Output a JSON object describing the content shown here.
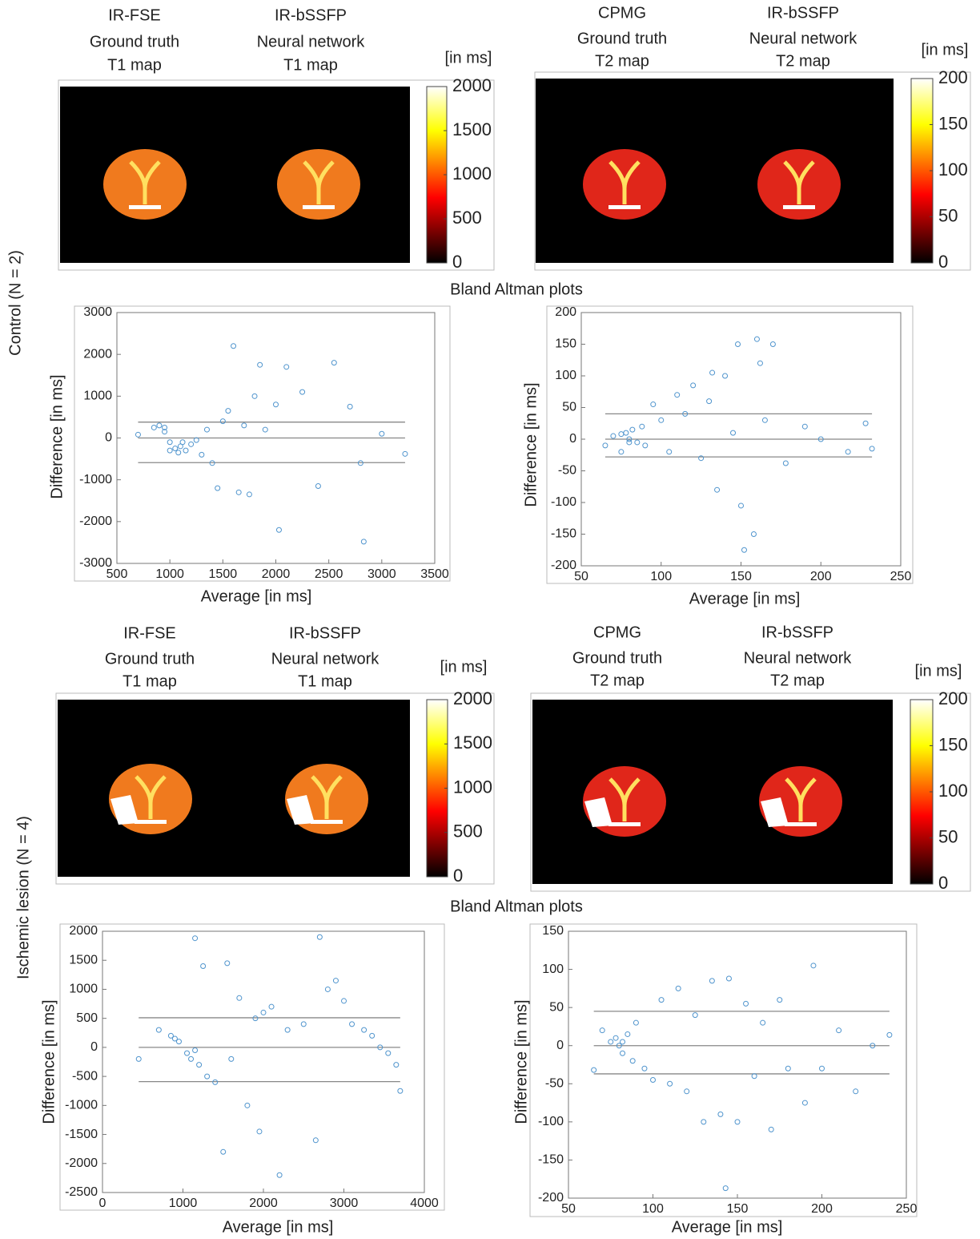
{
  "row_labels": [
    "Control (N = 2)",
    "Ischemic lesion  (N = 4)"
  ],
  "section_titles": [
    "Bland Altman plots",
    "Bland Altman plots"
  ],
  "map_panels": [
    {
      "headers": [
        [
          "IR-FSE",
          "Ground truth",
          "T1 map"
        ],
        [
          "IR-bSSFP",
          "Neural network",
          "T1 map"
        ]
      ],
      "unit": "[in ms]",
      "colorbar": {
        "lim": [
          0,
          2000
        ],
        "ticks": [
          0,
          500,
          1000,
          1500,
          2000
        ]
      }
    },
    {
      "headers": [
        [
          "CPMG",
          "Ground truth",
          "T2 map"
        ],
        [
          "IR-bSSFP",
          "Neural network",
          "T2 map"
        ]
      ],
      "unit": "[in ms]",
      "colorbar": {
        "lim": [
          0,
          200
        ],
        "ticks": [
          0,
          50,
          100,
          150,
          200
        ]
      }
    },
    {
      "headers": [
        [
          "IR-FSE",
          "Ground truth",
          "T1 map"
        ],
        [
          "IR-bSSFP",
          "Neural network",
          "T1 map"
        ]
      ],
      "unit": "[in ms]",
      "colorbar": {
        "lim": [
          0,
          2000
        ],
        "ticks": [
          0,
          500,
          1000,
          1500,
          2000
        ]
      }
    },
    {
      "headers": [
        [
          "CPMG",
          "Ground truth",
          "T2 map"
        ],
        [
          "IR-bSSFP",
          "Neural network",
          "T2 map"
        ]
      ],
      "unit": "[in ms]",
      "colorbar": {
        "lim": [
          0,
          200
        ],
        "ticks": [
          0,
          50,
          100,
          150,
          200
        ]
      }
    }
  ],
  "chart_data": [
    {
      "type": "scatter",
      "xlabel": "Average [in ms]",
      "ylabel": "Difference [in ms]",
      "color": "#4f94cd",
      "xlim": [
        500,
        3500
      ],
      "ylim": [
        -3000,
        3000
      ],
      "xticks": [
        500,
        1000,
        1500,
        2000,
        2500,
        3000,
        3500
      ],
      "yticks": [
        -3000,
        -2000,
        -1000,
        0,
        1000,
        2000,
        3000
      ],
      "reference_lines": [
        380,
        0,
        -590
      ],
      "x": [
        700,
        850,
        900,
        950,
        1000,
        1050,
        1100,
        1150,
        1200,
        1250,
        1300,
        1350,
        1400,
        1450,
        1500,
        1550,
        1600,
        1650,
        1700,
        1750,
        1800,
        1850,
        1900,
        2000,
        2030,
        2100,
        2250,
        2400,
        2550,
        2700,
        2800,
        2830,
        3000,
        3220,
        1000,
        1120,
        1080,
        950
      ],
      "values": [
        80,
        250,
        300,
        150,
        -100,
        -250,
        -200,
        -300,
        -150,
        -50,
        -400,
        200,
        -600,
        -1200,
        400,
        650,
        2200,
        -1300,
        300,
        -1350,
        1000,
        1750,
        200,
        800,
        -2200,
        1700,
        1100,
        -1150,
        1800,
        750,
        -600,
        -2480,
        100,
        -380,
        -300,
        -100,
        -350,
        250
      ]
    },
    {
      "type": "scatter",
      "xlabel": "Average [in ms]",
      "ylabel": "Difference [in ms]",
      "color": "#4f94cd",
      "xlim": [
        50,
        250
      ],
      "ylim": [
        -200,
        200
      ],
      "xticks": [
        50,
        100,
        150,
        200,
        250
      ],
      "yticks": [
        -200,
        -150,
        -100,
        -50,
        0,
        50,
        100,
        150,
        200
      ],
      "reference_lines": [
        40,
        0,
        -28
      ],
      "x": [
        65,
        70,
        75,
        78,
        80,
        82,
        85,
        88,
        90,
        95,
        100,
        105,
        110,
        115,
        120,
        125,
        130,
        132,
        135,
        140,
        145,
        148,
        150,
        152,
        158,
        160,
        162,
        165,
        170,
        178,
        190,
        200,
        217,
        228,
        232,
        80,
        75
      ],
      "values": [
        -10,
        5,
        -20,
        10,
        0,
        15,
        -5,
        20,
        -10,
        55,
        30,
        -20,
        70,
        40,
        85,
        -30,
        60,
        105,
        -80,
        100,
        10,
        150,
        -105,
        -175,
        -150,
        158,
        120,
        30,
        150,
        -38,
        20,
        0,
        -20,
        25,
        -15,
        -5,
        8
      ]
    },
    {
      "type": "scatter",
      "xlabel": "Average [in ms]",
      "ylabel": "Difference [in ms]",
      "color": "#4f94cd",
      "xlim": [
        0,
        4000
      ],
      "ylim": [
        -2500,
        2000
      ],
      "xticks": [
        0,
        1000,
        2000,
        3000,
        4000
      ],
      "yticks": [
        -2500,
        -2000,
        -1500,
        -1000,
        -500,
        0,
        500,
        1000,
        1500,
        2000
      ],
      "reference_lines": [
        510,
        0,
        -590
      ],
      "x": [
        450,
        700,
        850,
        900,
        950,
        1050,
        1100,
        1150,
        1150,
        1200,
        1250,
        1300,
        1400,
        1500,
        1550,
        1600,
        1700,
        1800,
        1900,
        1950,
        2000,
        2100,
        2200,
        2300,
        2500,
        2650,
        2700,
        2800,
        2900,
        3000,
        3100,
        3250,
        3350,
        3450,
        3550,
        3650,
        3700
      ],
      "values": [
        -200,
        300,
        200,
        150,
        100,
        -100,
        -200,
        -50,
        1880,
        -300,
        1400,
        -500,
        -600,
        -1800,
        1450,
        -200,
        850,
        -1000,
        500,
        -1450,
        600,
        700,
        -2200,
        300,
        400,
        -1600,
        1900,
        1000,
        1150,
        800,
        400,
        300,
        200,
        0,
        -100,
        -300,
        -750
      ]
    },
    {
      "type": "scatter",
      "xlabel": "Average [in ms]",
      "ylabel": "Difference [in ms]",
      "color": "#4f94cd",
      "xlim": [
        50,
        250
      ],
      "ylim": [
        -200,
        150
      ],
      "xticks": [
        50,
        100,
        150,
        200,
        250
      ],
      "yticks": [
        -200,
        -150,
        -100,
        -50,
        0,
        50,
        100,
        150
      ],
      "reference_lines": [
        45,
        0,
        -37
      ],
      "x": [
        65,
        70,
        75,
        78,
        80,
        82,
        85,
        88,
        90,
        95,
        100,
        105,
        110,
        115,
        120,
        125,
        130,
        135,
        140,
        143,
        145,
        150,
        155,
        160,
        165,
        170,
        175,
        180,
        190,
        195,
        200,
        210,
        220,
        230,
        240,
        82
      ],
      "values": [
        -32,
        20,
        5,
        10,
        0,
        -10,
        15,
        -20,
        30,
        -30,
        -45,
        60,
        -50,
        75,
        -60,
        40,
        -100,
        85,
        -90,
        -187,
        88,
        -100,
        55,
        -40,
        30,
        -110,
        60,
        -30,
        -75,
        105,
        -30,
        20,
        -60,
        0,
        14,
        5
      ]
    }
  ]
}
